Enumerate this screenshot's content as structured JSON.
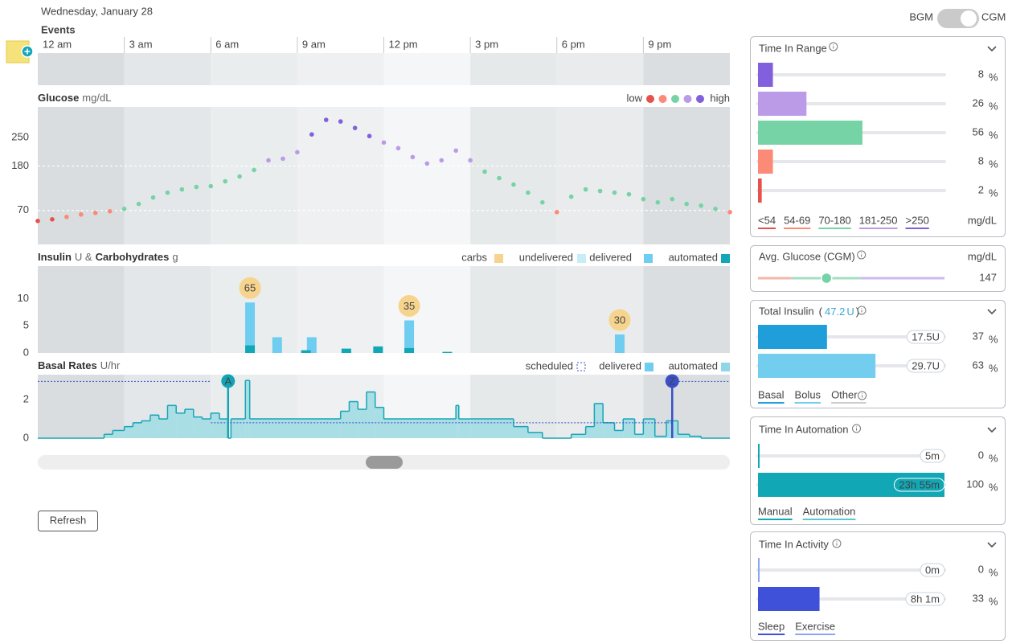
{
  "header": {
    "date": "Wednesday, January 28",
    "toggle_left": "BGM",
    "toggle_right": "CGM"
  },
  "time_axis": {
    "xlim": [
      0,
      24
    ],
    "ticks": [
      {
        "value": 0,
        "label": "12 am"
      },
      {
        "value": 3,
        "label": "3 am"
      },
      {
        "value": 6,
        "label": "6 am"
      },
      {
        "value": 9,
        "label": "9 am"
      },
      {
        "value": 12,
        "label": "12 pm"
      },
      {
        "value": 15,
        "label": "3 pm"
      },
      {
        "value": 18,
        "label": "6 pm"
      },
      {
        "value": 21,
        "label": "9 pm"
      }
    ]
  },
  "events": {
    "title": "Events"
  },
  "glucose": {
    "title": "Glucose",
    "unit": "mg/dL",
    "legend_low": "low",
    "legend_high": "high",
    "ylim": [
      -14,
      326
    ],
    "yticks": [
      70,
      180,
      250
    ],
    "targets": [
      70,
      180
    ],
    "x": [
      0,
      0.5,
      1,
      1.5,
      2,
      2.5,
      3,
      3.5,
      4,
      4.5,
      5,
      5.5,
      6,
      6.5,
      7,
      7.5,
      8,
      8.5,
      9,
      9.5,
      10,
      10.5,
      11,
      11.5,
      12,
      12.5,
      13,
      13.5,
      14,
      14.5,
      15,
      15.5,
      16,
      16.5,
      17,
      17.5,
      18,
      18.5,
      19,
      19.5,
      20,
      20.5,
      21,
      21.5,
      22,
      22.5,
      23,
      23.5,
      24
    ],
    "values": [
      44,
      48,
      54,
      60,
      64,
      68,
      74,
      86,
      102,
      114,
      122,
      128,
      130,
      142,
      154,
      170,
      194,
      198,
      214,
      258,
      294,
      290,
      274,
      254,
      238,
      224,
      202,
      186,
      194,
      218,
      194,
      166,
      150,
      134,
      114,
      90,
      66,
      104,
      122,
      118,
      114,
      110,
      98,
      90,
      98,
      86,
      82,
      74,
      66
    ]
  },
  "insulin": {
    "title": "Insulin",
    "unit": "U &",
    "title2": "Carbohydrates",
    "unit2": "g",
    "ylim": [
      0,
      16
    ],
    "yticks": [
      0,
      5,
      10
    ],
    "legend": [
      {
        "name": "carbs",
        "color": "#f7d48e"
      },
      {
        "name": "undelivered",
        "color": "#c8ecf8"
      },
      {
        "name": "delivered",
        "color": "#6ecdf0"
      },
      {
        "name": "automated",
        "color": "#10a8b6"
      }
    ],
    "bolus": {
      "x": [
        7.36,
        8.3,
        9.5,
        12.88,
        20.18
      ],
      "values": [
        9.3,
        2.9,
        2.9,
        6.0,
        3.4
      ]
    },
    "automated": {
      "x": [
        7.36,
        9.3,
        10.7,
        11.8,
        12.88,
        14.2
      ],
      "values": [
        1.4,
        0.5,
        0.8,
        1.2,
        0.9,
        0.2
      ]
    },
    "carbs": {
      "x": [
        7.36,
        12.88,
        20.18
      ],
      "values": [
        65,
        35,
        30
      ]
    }
  },
  "basal": {
    "title": "Basal Rates",
    "unit": "U/hr",
    "ylim": [
      0,
      3.3
    ],
    "yticks": [
      0,
      2
    ],
    "legend": [
      {
        "name": "scheduled",
        "color": "#3a55c9"
      },
      {
        "name": "delivered",
        "color": "#6ecdf0"
      },
      {
        "name": "automated",
        "color": "#8fd6e8"
      }
    ],
    "scheduled": {
      "x": [
        0,
        6,
        22
      ],
      "values": [
        2.95,
        0.8,
        2.95
      ]
    },
    "x": [
      0,
      2.3,
      2.6,
      3,
      3.3,
      3.6,
      3.9,
      4.2,
      4.5,
      4.8,
      5.1,
      5.4,
      5.7,
      6.0,
      6.3,
      6.6,
      6.7,
      7.2,
      7.35,
      8,
      10.5,
      10.8,
      11.1,
      11.4,
      11.7,
      12,
      14.5,
      14.6,
      15,
      16.5,
      17,
      17.5,
      18.5,
      19,
      19.3,
      19.6,
      20,
      20.3,
      20.7,
      21,
      21.4,
      21.8,
      22.2,
      22.6,
      23
    ],
    "values": [
      0,
      0.2,
      0.4,
      0.6,
      0.8,
      0.9,
      1.2,
      1.0,
      1.7,
      1.3,
      1.5,
      1.1,
      1.0,
      1.3,
      1.0,
      0,
      1.0,
      3.0,
      1.0,
      1.0,
      1.4,
      1.9,
      1.5,
      2.4,
      1.6,
      1.0,
      1.7,
      1.0,
      1.0,
      0.6,
      0.3,
      0,
      0.2,
      0.6,
      1.8,
      0.8,
      0.4,
      1.0,
      0.2,
      1.0,
      0.1,
      0.9,
      0.2,
      0.1,
      0
    ],
    "markers": [
      {
        "label": "A",
        "x": 6.6,
        "color": "#13a3b4"
      },
      {
        "label": "Z",
        "x": 22,
        "color": "#3a4fc8"
      }
    ]
  },
  "refresh": "Refresh",
  "sidebar": {
    "percent_unit": "%",
    "time_in_range": {
      "title": "Time In Range",
      "unit": "mg/dL",
      "thresholds": [
        54,
        70,
        181,
        251
      ],
      "ranges": [
        {
          "label": "<54",
          "color": "#e5524c",
          "value": 2
        },
        {
          "label": "54-69",
          "color": "#fb8a76",
          "value": 8
        },
        {
          "label": "70-180",
          "color": "#76d3a6",
          "value": 56
        },
        {
          "label": "181-250",
          "color": "#bb9be8",
          "value": 26
        },
        {
          "label": ">250",
          "color": "#825fdd",
          "value": 8
        }
      ]
    },
    "avg_glucose": {
      "title": "Avg. Glucose (CGM)",
      "unit": "mg/dL",
      "value": 147,
      "lim": [
        0,
        400
      ],
      "color": "#76d3a6"
    },
    "total_insulin": {
      "title": "Total Insulin",
      "open": "(",
      "total": 47.2,
      "total_unit": "U",
      "close": ")",
      "rows": [
        {
          "value": 37,
          "amount": {
            "value": 17.5,
            "label": "17.5U"
          },
          "color": "#1f9ed9"
        },
        {
          "value": 63,
          "amount": {
            "value": 29.7,
            "label": "29.7U"
          },
          "color": "#73cdef"
        }
      ],
      "tabs": [
        {
          "name": "Basal",
          "color": "#1f9ed9"
        },
        {
          "name": "Bolus",
          "color": "#73cdef"
        },
        {
          "name": "Other",
          "color": "#cccccc"
        }
      ]
    },
    "time_in_automation": {
      "title": "Time In Automation",
      "rows": [
        {
          "value": 0,
          "amount": {
            "value": 5,
            "label": "5m"
          },
          "color": "#11a7b5"
        },
        {
          "value": 100,
          "amount": {
            "value": 1435,
            "label": "23h 55m"
          },
          "color": "#11a7b5"
        }
      ],
      "tabs": [
        {
          "name": "Manual",
          "color": "#11a7b5"
        },
        {
          "name": "Automation",
          "color": "#5cc7d2"
        }
      ]
    },
    "time_in_activity": {
      "title": "Time In Activity",
      "rows": [
        {
          "value": 0,
          "amount": {
            "value": 0,
            "label": "0m"
          },
          "color": "#8aa6f2"
        },
        {
          "value": 33,
          "amount": {
            "value": 481,
            "label": "8h 1m"
          },
          "color": "#3f51d9"
        }
      ],
      "tabs": [
        {
          "name": "Sleep",
          "color": "#3f51d9"
        },
        {
          "name": "Exercise",
          "color": "#8aa6f2"
        }
      ]
    }
  }
}
